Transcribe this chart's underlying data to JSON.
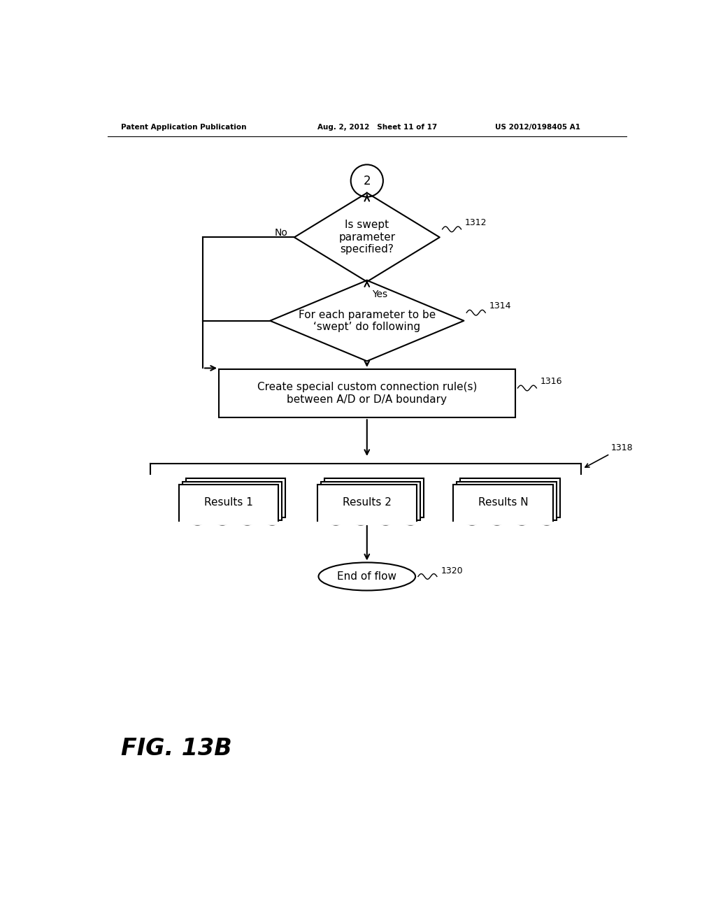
{
  "background_color": "#ffffff",
  "header_left": "Patent Application Publication",
  "header_mid": "Aug. 2, 2012   Sheet 11 of 17",
  "header_right": "US 2012/0198405 A1",
  "fig_label": "FIG. 13B",
  "circle_label": "2",
  "diamond1_label": "Is swept\nparameter\nspecified?",
  "diamond1_ref": "1312",
  "diamond1_no": "No",
  "diamond1_yes": "Yes",
  "diamond2_label": "For each parameter to be\n‘swept’ do following",
  "diamond2_ref": "1314",
  "rect_label": "Create special custom connection rule(s)\nbetween A/D or D/A boundary",
  "rect_ref": "1316",
  "brace_ref": "1318",
  "results": [
    "Results 1",
    "Results 2",
    "Results N"
  ],
  "end_label": "End of flow",
  "end_ref": "1320",
  "line_color": "#000000",
  "text_color": "#000000",
  "lw": 1.5
}
